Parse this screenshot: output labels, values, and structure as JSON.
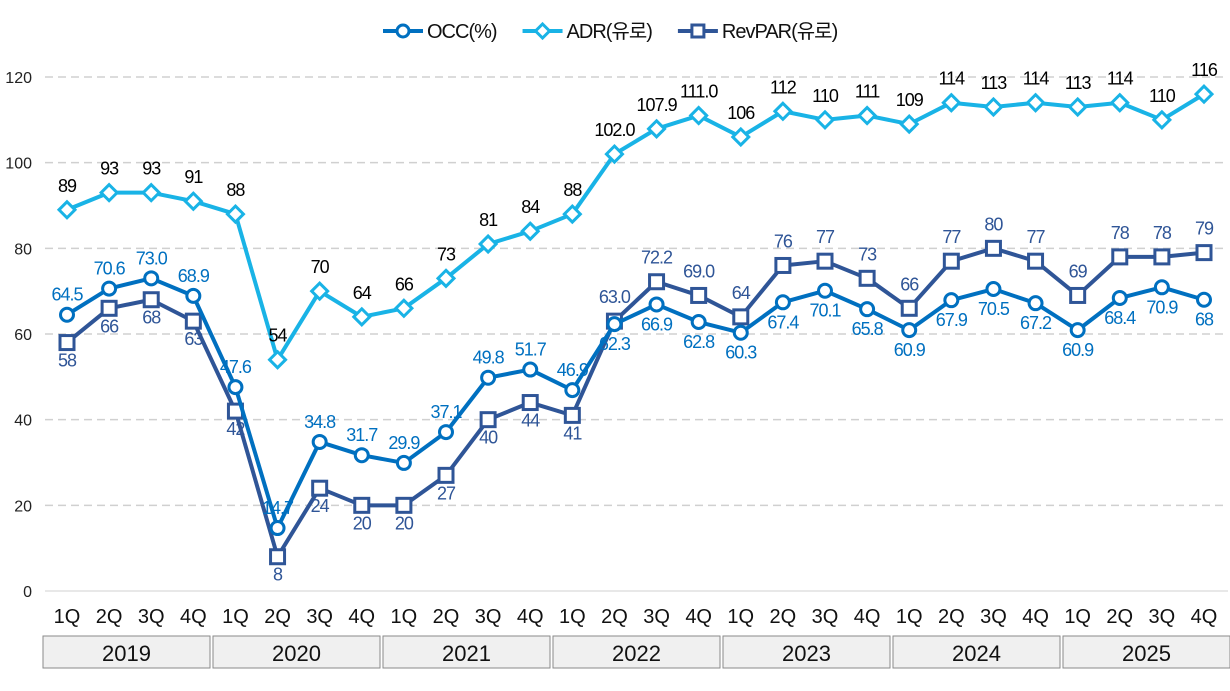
{
  "chart_data": {
    "type": "line",
    "title": "",
    "xlabel": "",
    "ylabel": "",
    "ylim": [
      0,
      120
    ],
    "yticks": [
      0,
      20,
      40,
      60,
      80,
      100,
      120
    ],
    "grid": "horizontal dashed",
    "legend_position": "top",
    "years": [
      "2019",
      "2020",
      "2021",
      "2022",
      "2023",
      "2024",
      "2025"
    ],
    "quarters": [
      "1Q",
      "2Q",
      "3Q",
      "4Q"
    ],
    "series": [
      {
        "name": "OCC(%)",
        "marker": "circle",
        "color": "#0070C0",
        "label_color": "#0070C0",
        "values": [
          64.5,
          70.6,
          73.0,
          68.9,
          47.6,
          14.7,
          34.8,
          31.7,
          29.9,
          37.1,
          49.8,
          51.7,
          46.9,
          62.3,
          66.9,
          62.8,
          60.3,
          67.4,
          70.1,
          65.8,
          60.9,
          67.9,
          70.5,
          67.2,
          60.9,
          68.4,
          70.9,
          68
        ],
        "labels": [
          "64.5",
          "70.6",
          "73.0",
          "68.9",
          "47.6",
          "14.7",
          "34.8",
          "31.7",
          "29.9",
          "37.1",
          "49.8",
          "51.7",
          "46.9",
          "62.3",
          "66.9",
          "62.8",
          "60.3",
          "67.4",
          "70.1",
          "65.8",
          "60.9",
          "67.9",
          "70.5",
          "67.2",
          "60.9",
          "68.4",
          "70.9",
          "68"
        ]
      },
      {
        "name": "ADR(유로)",
        "marker": "diamond",
        "color": "#19B3E6",
        "label_color": "#000000",
        "values": [
          89,
          93,
          93,
          91,
          88,
          54,
          70,
          64,
          66,
          73,
          81,
          84,
          88,
          102.0,
          107.9,
          111.0,
          106,
          112,
          110,
          111,
          109,
          114,
          113,
          114,
          113,
          114,
          110,
          116
        ],
        "labels": [
          "89",
          "93",
          "93",
          "91",
          "88",
          "54",
          "70",
          "64",
          "66",
          "73",
          "81",
          "84",
          "88",
          "102.0",
          "107.9",
          "111.0",
          "106",
          "112",
          "110",
          "111",
          "109",
          "114",
          "113",
          "114",
          "113",
          "114",
          "110",
          "116"
        ]
      },
      {
        "name": "RevPAR(유로)",
        "marker": "square",
        "color": "#2F5597",
        "label_color": "#2F5597",
        "values": [
          58,
          66,
          68,
          63,
          42,
          8,
          24,
          20,
          20,
          27,
          40,
          44,
          41,
          63.0,
          72.2,
          69.0,
          64,
          76,
          77,
          73,
          66,
          77,
          80,
          77,
          69,
          78,
          78,
          79
        ],
        "labels": [
          "58",
          "66",
          "68",
          "63",
          "42",
          "8",
          "24",
          "20",
          "20",
          "27",
          "40",
          "44",
          "41",
          "63.0",
          "72.2",
          "69.0",
          "64",
          "76",
          "77",
          "73",
          "66",
          "77",
          "80",
          "77",
          "69",
          "78",
          "78",
          "79"
        ]
      }
    ]
  }
}
